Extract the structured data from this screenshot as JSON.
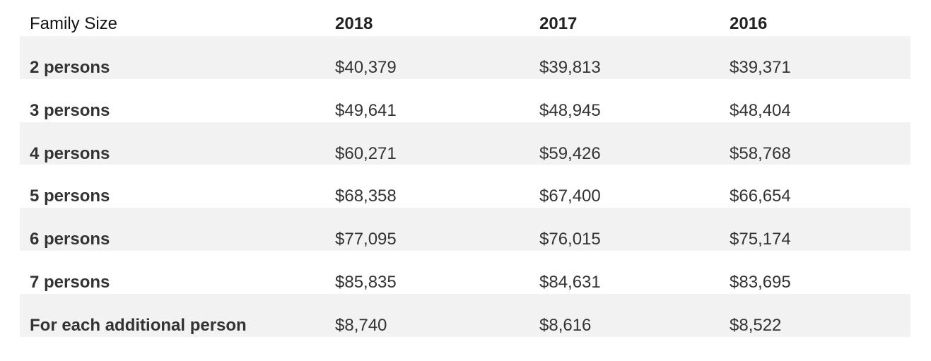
{
  "table": {
    "headers": [
      "Family Size",
      "2018",
      "2017",
      "2016"
    ],
    "rows": [
      {
        "label": "2 persons",
        "values": [
          "$40,379",
          "$39,813",
          "$39,371"
        ]
      },
      {
        "label": "3 persons",
        "values": [
          "$49,641",
          "$48,945",
          "$48,404"
        ]
      },
      {
        "label": "4 persons",
        "values": [
          "$60,271",
          "$59,426",
          "$58,768"
        ]
      },
      {
        "label": "5 persons",
        "values": [
          "$68,358",
          "$67,400",
          "$66,654"
        ]
      },
      {
        "label": "6 persons",
        "values": [
          "$77,095",
          "$76,015",
          "$75,174"
        ]
      },
      {
        "label": "7 persons",
        "values": [
          "$85,835",
          "$84,631",
          "$83,695"
        ]
      },
      {
        "label": "For each additional person",
        "values": [
          "$8,740",
          "$8,616",
          "$8,522"
        ]
      }
    ]
  },
  "colors": {
    "shaded_row": "#f2f2f2",
    "text": "#333333"
  }
}
